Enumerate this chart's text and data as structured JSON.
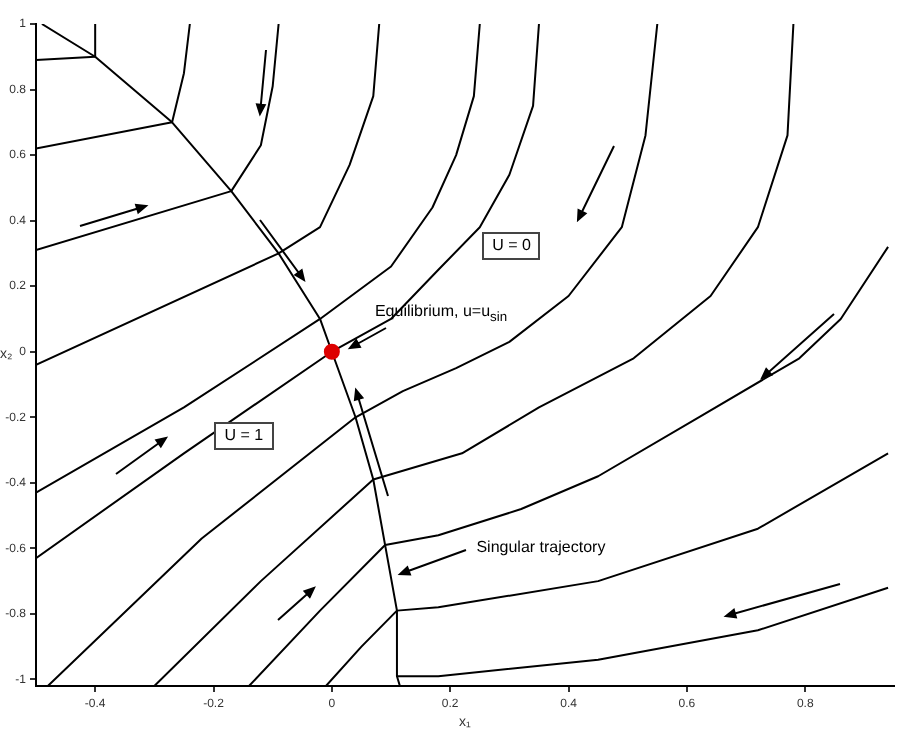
{
  "chart_data": {
    "type": "line",
    "xlabel": "x₁",
    "ylabel": "x₂",
    "xlim": [
      -0.5,
      0.95
    ],
    "ylim": [
      -1.02,
      1
    ],
    "xticks": [
      -0.4,
      -0.2,
      0,
      0.2,
      0.4,
      0.6,
      0.8
    ],
    "yticks": [
      -1,
      -0.8,
      -0.6,
      -0.4,
      -0.2,
      0,
      0.2,
      0.4,
      0.6,
      0.8,
      1
    ],
    "grid": false,
    "legend": false,
    "marker": "none",
    "line_style": "solid",
    "series": [
      {
        "color": "#000000",
        "x": [
          -0.49,
          -0.4,
          -0.27,
          -0.17,
          -0.09,
          -0.02,
          0,
          0.04,
          0.07,
          0.09,
          0.11,
          0.11,
          0.115
        ],
        "values": [
          1.0,
          0.9,
          0.7,
          0.49,
          0.3,
          0.1,
          0,
          -0.2,
          -0.39,
          -0.59,
          -0.79,
          -0.99,
          -1.02
        ]
      },
      {
        "color": "#000000",
        "x": [
          -0.5,
          -0.4,
          -0.4
        ],
        "values": [
          0.89,
          0.9,
          1.0
        ]
      },
      {
        "color": "#000000",
        "x": [
          -0.5,
          -0.27,
          -0.25,
          -0.24
        ],
        "values": [
          0.62,
          0.7,
          0.85,
          1.0
        ]
      },
      {
        "color": "#000000",
        "x": [
          -0.5,
          -0.17,
          -0.12,
          -0.1,
          -0.09
        ],
        "values": [
          0.31,
          0.49,
          0.63,
          0.81,
          1.0
        ]
      },
      {
        "color": "#000000",
        "x": [
          -0.5,
          -0.09,
          -0.02,
          0.03,
          0.07,
          0.08
        ],
        "values": [
          -0.04,
          0.3,
          0.38,
          0.57,
          0.78,
          1.0
        ]
      },
      {
        "color": "#000000",
        "x": [
          -0.5,
          -0.25,
          -0.02,
          0.1,
          0.17,
          0.21,
          0.24,
          0.25
        ],
        "values": [
          -0.43,
          -0.17,
          0.1,
          0.26,
          0.44,
          0.6,
          0.78,
          1.0
        ]
      },
      {
        "color": "#000000",
        "x": [
          -0.5,
          -0.25,
          0,
          0.1,
          0.18,
          0.25,
          0.3,
          0.34,
          0.35
        ],
        "values": [
          -0.63,
          -0.31,
          0,
          0.1,
          0.25,
          0.38,
          0.54,
          0.75,
          1.0
        ]
      },
      {
        "color": "#000000",
        "x": [
          -0.48,
          -0.22,
          0.04,
          0.12,
          0.21,
          0.3,
          0.4,
          0.49,
          0.53,
          0.55
        ],
        "values": [
          -1.02,
          -0.57,
          -0.2,
          -0.12,
          -0.05,
          0.03,
          0.17,
          0.38,
          0.66,
          1.0
        ]
      },
      {
        "color": "#000000",
        "x": [
          -0.3,
          -0.12,
          0.07,
          0.22,
          0.35,
          0.51,
          0.64,
          0.72,
          0.77,
          0.78
        ],
        "values": [
          -1.02,
          -0.7,
          -0.39,
          -0.31,
          -0.17,
          -0.02,
          0.17,
          0.38,
          0.66,
          1.0
        ]
      },
      {
        "color": "#000000",
        "x": [
          -0.14,
          -0.02,
          0.09,
          0.18,
          0.32,
          0.45,
          0.62,
          0.79,
          0.86,
          0.94
        ],
        "values": [
          -1.02,
          -0.79,
          -0.59,
          -0.56,
          -0.48,
          -0.38,
          -0.2,
          -0.02,
          0.1,
          0.32
        ]
      },
      {
        "color": "#000000",
        "x": [
          -0.01,
          0.05,
          0.11,
          0.18,
          0.45,
          0.72,
          0.94
        ],
        "values": [
          -1.02,
          -0.9,
          -0.79,
          -0.78,
          -0.7,
          -0.54,
          -0.31
        ]
      },
      {
        "color": "#000000",
        "x": [
          0.11,
          0.18,
          0.45,
          0.72,
          0.94
        ],
        "values": [
          -0.99,
          -0.99,
          -0.94,
          -0.85,
          -0.72
        ]
      },
      {
        "type": "scatter",
        "marker": "circle",
        "color": "#dd0000",
        "x": [
          0
        ],
        "values": [
          0
        ]
      }
    ],
    "annotations": [
      "Equilibrium, u=u$_{sin}$",
      "U = 0",
      "U = 1",
      "Singular trajectory"
    ]
  }
}
